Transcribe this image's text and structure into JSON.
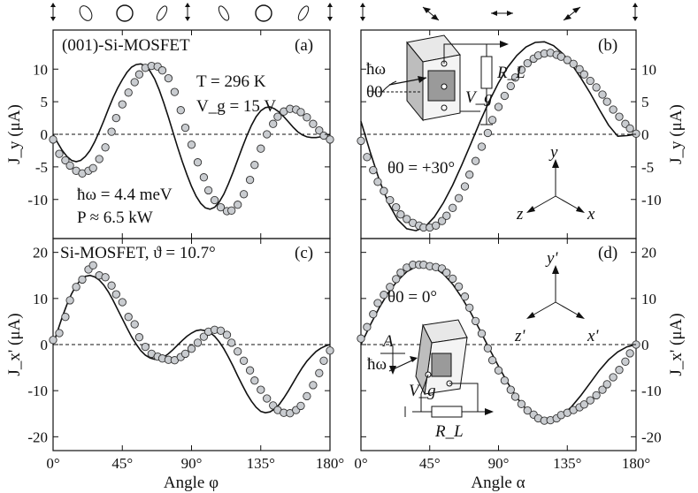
{
  "chart_data": [
    {
      "id": "a",
      "type": "scatter",
      "panel_label": "(a)",
      "title": "(001)-Si-MOSFET",
      "xlim": [
        0,
        180
      ],
      "ylim": [
        -16,
        16
      ],
      "xticks": [
        "0°",
        "45°",
        "90°",
        "135°",
        "180°"
      ],
      "yticks": [
        10,
        5,
        0,
        -5,
        -10
      ],
      "ylabel": "J_y (μA)",
      "annotations": [
        "T = 296 K",
        "V_g = 15 V",
        "ħω = 4.4 meV",
        "P ≈ 6.5 kW"
      ],
      "series": [
        {
          "name": "measured",
          "x": [
            0,
            4,
            8,
            11,
            15,
            19,
            23,
            26,
            30,
            34,
            38,
            41,
            45,
            49,
            53,
            56,
            60,
            64,
            68,
            71,
            75,
            79,
            83,
            86,
            90,
            94,
            98,
            101,
            105,
            109,
            113,
            116,
            120,
            124,
            128,
            131,
            135,
            139,
            143,
            146,
            150,
            154,
            158,
            161,
            165,
            169,
            173,
            176,
            180
          ],
          "y": [
            -0.8,
            -3,
            -4,
            -4.8,
            -5.6,
            -6,
            -5.6,
            -5.2,
            -3.8,
            -2,
            0.4,
            2.5,
            4.6,
            6.4,
            8,
            9.2,
            10.2,
            10.5,
            10.4,
            9.8,
            8.6,
            6.5,
            3.7,
            1,
            -1.6,
            -4.3,
            -6.6,
            -8.6,
            -10.1,
            -11.2,
            -11.8,
            -11.7,
            -10.8,
            -9.2,
            -7,
            -4.7,
            -2.2,
            0,
            1.6,
            2.7,
            3.5,
            3.9,
            3.8,
            3.4,
            2.6,
            1.6,
            0.6,
            -0.2,
            -0.8
          ]
        },
        {
          "name": "fit",
          "x": [
            0,
            3,
            6,
            9,
            12,
            15,
            18,
            21,
            24,
            27,
            30,
            33,
            36,
            39,
            42,
            45,
            48,
            51,
            54,
            57,
            60,
            63,
            66,
            69,
            72,
            75,
            78,
            81,
            84,
            87,
            90,
            93,
            96,
            99,
            102,
            105,
            108,
            111,
            114,
            117,
            120,
            123,
            126,
            129,
            132,
            135,
            138,
            141,
            144,
            147,
            150,
            153,
            156,
            159,
            162,
            165,
            168,
            171,
            174,
            177,
            180
          ],
          "y": [
            0,
            -1.3,
            -2.5,
            -3.4,
            -4,
            -4.2,
            -4,
            -3.4,
            -2.5,
            -1.2,
            0.4,
            2.1,
            3.9,
            5.6,
            7.1,
            8.4,
            9.5,
            10.3,
            10.7,
            10.8,
            10.5,
            9.7,
            8.5,
            6.8,
            4.8,
            2.6,
            0.3,
            -2,
            -4.2,
            -6.2,
            -8,
            -9.5,
            -10.6,
            -11.3,
            -11.5,
            -11.2,
            -10.4,
            -9.2,
            -7.6,
            -5.8,
            -3.9,
            -2,
            -0.2,
            1.4,
            2.7,
            3.6,
            4.1,
            4.2,
            3.9,
            3.4,
            2.7,
            1.9,
            1.1,
            0.4,
            -0.1,
            -0.4,
            -0.5,
            -0.5,
            -0.4,
            -0.2,
            0
          ]
        }
      ]
    },
    {
      "id": "b",
      "type": "scatter",
      "panel_label": "(b)",
      "xlim": [
        0,
        180
      ],
      "ylim": [
        -16,
        16
      ],
      "xticks": [
        "0°",
        "45°",
        "90°",
        "135°",
        "180°"
      ],
      "yticks": [
        10,
        5,
        0,
        -5,
        -10
      ],
      "ylabel": "J_y (μA)",
      "annotations": [
        "θ0 = +30°",
        "ħω",
        "θ0",
        "R_L",
        "V_g"
      ],
      "axes_labels": [
        "y",
        "z",
        "x"
      ],
      "series": [
        {
          "name": "measured",
          "x": [
            0,
            4,
            8,
            11,
            15,
            19,
            23,
            26,
            30,
            34,
            38,
            41,
            45,
            49,
            53,
            56,
            60,
            64,
            68,
            71,
            75,
            79,
            83,
            86,
            90,
            94,
            98,
            101,
            105,
            109,
            113,
            116,
            120,
            124,
            128,
            131,
            135,
            139,
            143,
            146,
            150,
            154,
            158,
            161,
            165,
            169,
            173,
            176,
            180
          ],
          "y": [
            -1,
            -3.5,
            -5.5,
            -7.3,
            -8.7,
            -10.1,
            -11.2,
            -12.3,
            -13,
            -13.6,
            -14,
            -14.3,
            -14.3,
            -14,
            -13.3,
            -12.5,
            -11.3,
            -9.8,
            -8,
            -6.2,
            -4.1,
            -1.9,
            0.2,
            2.2,
            4.2,
            5.9,
            7.4,
            8.7,
            9.9,
            10.9,
            11.6,
            12.1,
            12.4,
            12.5,
            12.2,
            11.9,
            11.4,
            10.8,
            10,
            9.2,
            8.2,
            7.2,
            6.1,
            5,
            3.8,
            2.7,
            1.6,
            0.9,
            0.1
          ]
        },
        {
          "name": "fit",
          "x": [
            0,
            6,
            12,
            18,
            24,
            30,
            36,
            42,
            48,
            54,
            60,
            66,
            72,
            78,
            84,
            90,
            96,
            102,
            108,
            114,
            120,
            126,
            132,
            138,
            144,
            150,
            156,
            162,
            168,
            174,
            180
          ],
          "y": [
            2,
            -2.7,
            -7,
            -10.6,
            -13.1,
            -14.5,
            -14.8,
            -14.2,
            -12.7,
            -10.5,
            -7.8,
            -4.7,
            -1.4,
            2,
            5.1,
            7.9,
            10.3,
            12.1,
            13.4,
            14.1,
            14.2,
            13.6,
            12.4,
            10.7,
            8.6,
            6.3,
            3.8,
            1.4,
            -0.3,
            -0.2,
            0
          ]
        }
      ]
    },
    {
      "id": "c",
      "type": "scatter",
      "panel_label": "(c)",
      "title": "Si-MOSFET, ϑ = 10.7°",
      "xlim": [
        0,
        180
      ],
      "ylim": [
        -23,
        23
      ],
      "xticks": [
        "0°",
        "45°",
        "90°",
        "135°",
        "180°"
      ],
      "yticks": [
        20,
        10,
        0,
        -10,
        -20
      ],
      "ylabel": "J_x' (μA)",
      "xlabel": "Angle φ",
      "series": [
        {
          "name": "measured",
          "x": [
            0,
            4,
            8,
            11,
            15,
            19,
            23,
            26,
            30,
            34,
            38,
            41,
            45,
            49,
            53,
            56,
            60,
            64,
            68,
            71,
            75,
            79,
            83,
            86,
            90,
            94,
            98,
            101,
            105,
            109,
            113,
            116,
            120,
            124,
            128,
            131,
            135,
            139,
            143,
            146,
            150,
            154,
            158,
            161,
            165,
            169,
            173,
            176,
            180
          ],
          "y": [
            1,
            2.5,
            6,
            9.6,
            12.5,
            14.1,
            16.3,
            17.2,
            15,
            14.6,
            12.8,
            10.9,
            9.2,
            6,
            4.4,
            1.6,
            -0.5,
            -2,
            -2.6,
            -3,
            -3.3,
            -3.4,
            -2.7,
            -2,
            -0.9,
            0.4,
            1.7,
            2.8,
            3.2,
            3,
            2.1,
            0.4,
            -1.5,
            -3.5,
            -5.6,
            -7.8,
            -9.8,
            -11.7,
            -13.2,
            -14.2,
            -14.8,
            -14.9,
            -14.2,
            -13.3,
            -11.2,
            -8.8,
            -6.2,
            -3.5,
            -1.3
          ]
        },
        {
          "name": "fit",
          "x": [
            0,
            3,
            6,
            9,
            12,
            15,
            18,
            21,
            24,
            27,
            30,
            33,
            36,
            39,
            42,
            45,
            48,
            51,
            54,
            57,
            60,
            63,
            66,
            69,
            72,
            75,
            78,
            81,
            84,
            87,
            90,
            93,
            96,
            99,
            102,
            105,
            108,
            111,
            114,
            117,
            120,
            123,
            126,
            129,
            132,
            135,
            138,
            141,
            144,
            147,
            150,
            153,
            156,
            159,
            162,
            165,
            168,
            171,
            174,
            177,
            180
          ],
          "y": [
            0,
            3,
            6,
            8.7,
            11,
            12.8,
            14.1,
            14.8,
            15,
            14.7,
            14,
            12.9,
            11.4,
            9.6,
            7.6,
            5.6,
            3.6,
            1.7,
            0.1,
            -1.3,
            -2.3,
            -2.9,
            -3.2,
            -3.1,
            -2.7,
            -2,
            -1.1,
            -0.1,
            0.9,
            1.8,
            2.5,
            3,
            3.2,
            3,
            2.6,
            1.8,
            0.6,
            -0.9,
            -2.7,
            -4.7,
            -6.8,
            -8.8,
            -10.7,
            -12.3,
            -13.6,
            -14.5,
            -14.8,
            -14.6,
            -14,
            -13,
            -11.6,
            -10,
            -8.3,
            -6.6,
            -5,
            -3.6,
            -2.5,
            -1.5,
            -0.8,
            -0.3,
            0
          ]
        }
      ]
    },
    {
      "id": "d",
      "type": "scatter",
      "panel_label": "(d)",
      "xlim": [
        0,
        180
      ],
      "ylim": [
        -23,
        23
      ],
      "xticks": [
        "0°",
        "45°",
        "90°",
        "135°",
        "180°"
      ],
      "yticks": [
        20,
        10,
        0,
        -10,
        -20
      ],
      "ylabel": "J_x' (μA)",
      "xlabel": "Angle α",
      "annotations": [
        "θ0 = 0°",
        "A",
        "ħω",
        "V_g",
        "R_L"
      ],
      "axes_labels": [
        "y'",
        "z'",
        "x'"
      ],
      "series": [
        {
          "name": "measured",
          "x": [
            0,
            4,
            8,
            11,
            15,
            19,
            23,
            26,
            30,
            34,
            38,
            41,
            45,
            49,
            53,
            56,
            60,
            64,
            68,
            71,
            75,
            79,
            83,
            86,
            90,
            94,
            98,
            101,
            105,
            109,
            113,
            116,
            120,
            124,
            128,
            131,
            135,
            139,
            143,
            146,
            150,
            154,
            158,
            161,
            165,
            169,
            173,
            176,
            180
          ],
          "y": [
            1.3,
            3.8,
            6.6,
            9,
            10.8,
            12.5,
            14.2,
            15.6,
            16.7,
            17.3,
            17.3,
            17.3,
            17,
            16.8,
            16.5,
            15.6,
            14.3,
            12.6,
            10.4,
            8,
            5.1,
            2.4,
            -0.8,
            -3.4,
            -5.6,
            -7.8,
            -9.8,
            -11.3,
            -12.9,
            -14.3,
            -15.2,
            -16,
            -16.5,
            -16.4,
            -16,
            -15.3,
            -14.8,
            -14.2,
            -13.6,
            -13,
            -12.1,
            -11,
            -9.8,
            -8.6,
            -7.1,
            -5.5,
            -3.7,
            -1.9,
            0
          ]
        },
        {
          "name": "fit",
          "x": [
            0,
            6,
            12,
            18,
            24,
            30,
            36,
            42,
            48,
            54,
            60,
            66,
            72,
            78,
            84,
            90,
            96,
            102,
            108,
            114,
            120,
            126,
            132,
            138,
            144,
            150,
            156,
            162,
            168,
            174,
            180
          ],
          "y": [
            0,
            4.2,
            8,
            11.3,
            13.9,
            15.8,
            16.9,
            17.2,
            16.7,
            15.3,
            13.1,
            10.2,
            6.8,
            3,
            -0.9,
            -4.7,
            -8.3,
            -11.5,
            -14,
            -15.8,
            -16.6,
            -16.4,
            -15.3,
            -13.4,
            -11,
            -8.3,
            -5.6,
            -3.3,
            -1.6,
            -0.5,
            0
          ]
        }
      ]
    }
  ],
  "top_row": {
    "left_markers": [
      "ellipse-polarization-icon",
      "circle-polarization-icon",
      "ellipse-polarization-icon",
      "ellipse-polarization-icon",
      "circle-polarization-icon",
      "ellipse-polarization-icon"
    ],
    "right_markers": [
      "arrow-diagonal-icon",
      "arrow-horizontal-icon",
      "arrow-diagonal-icon"
    ]
  }
}
